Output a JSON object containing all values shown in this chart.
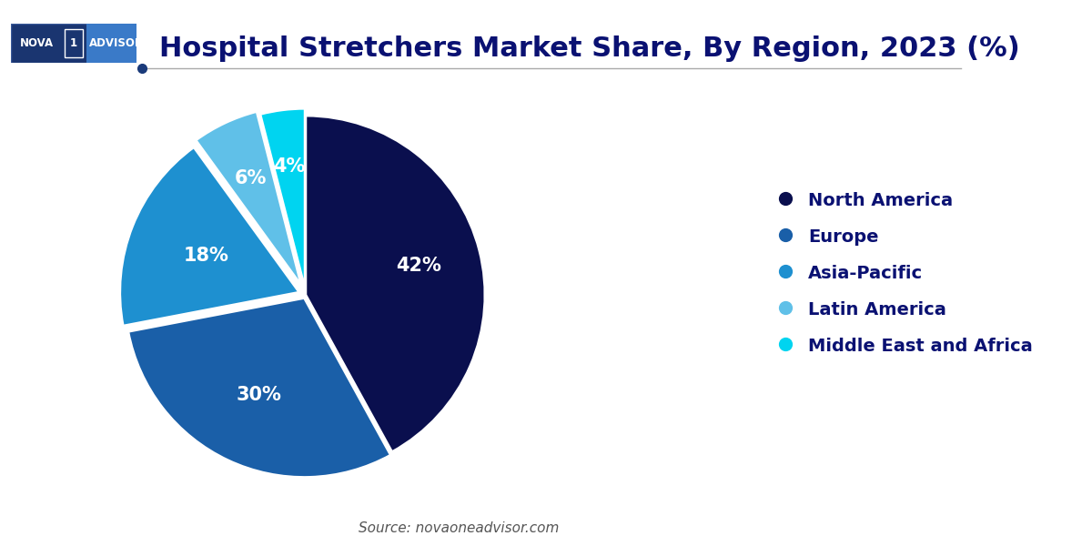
{
  "title": "Hospital Stretchers Market Share, By Region, 2023 (%)",
  "labels": [
    "North America",
    "Europe",
    "Asia-Pacific",
    "Latin America",
    "Middle East and Africa"
  ],
  "values": [
    42,
    30,
    18,
    6,
    4
  ],
  "colors": [
    "#0a0f4e",
    "#1a5fa8",
    "#1e90d0",
    "#60c0e8",
    "#00d4f0"
  ],
  "pct_labels": [
    "42%",
    "30%",
    "18%",
    "6%",
    "4%"
  ],
  "explode": [
    0,
    0.02,
    0.04,
    0.06,
    0.04
  ],
  "start_angle": 90,
  "background_color": "#ffffff",
  "title_color": "#0a1172",
  "title_fontsize": 22,
  "legend_fontsize": 14,
  "pct_fontsize": 15,
  "source_text": "Source: novaoneadvisor.com",
  "source_fontsize": 11
}
